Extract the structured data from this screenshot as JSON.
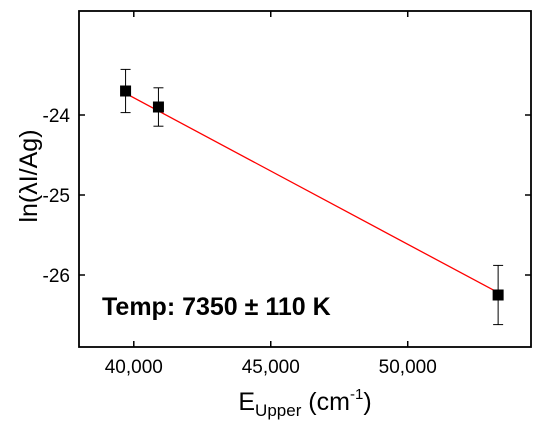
{
  "chart_data": {
    "type": "scatter",
    "xlabel": {
      "main": "E",
      "sub": "Upper",
      "unit_open": " (cm",
      "sup": "-1",
      "unit_close": ")"
    },
    "ylabel": "ln(λI/Ag)",
    "xlim": [
      38000,
      54500
    ],
    "ylim": [
      -26.9,
      -22.7
    ],
    "x_ticks": [
      40000,
      45000,
      50000
    ],
    "x_tick_labels": [
      "40,000",
      "45,000",
      "50,000"
    ],
    "y_ticks": [
      -24,
      -25,
      -26
    ],
    "y_tick_labels": [
      "-24",
      "-25",
      "-26"
    ],
    "series": [
      {
        "x": [
          39700,
          40900,
          53300
        ],
        "y": [
          -23.7,
          -23.9,
          -26.25
        ],
        "y_err": [
          0.27,
          0.24,
          0.37
        ],
        "marker": "square",
        "color": "#000000"
      }
    ],
    "fit_line": {
      "x": [
        39700,
        53300
      ],
      "y": [
        -23.73,
        -26.22
      ],
      "color": "#ff0000"
    },
    "annotation": "Temp: 7350 ± 110 K",
    "grid": false
  }
}
